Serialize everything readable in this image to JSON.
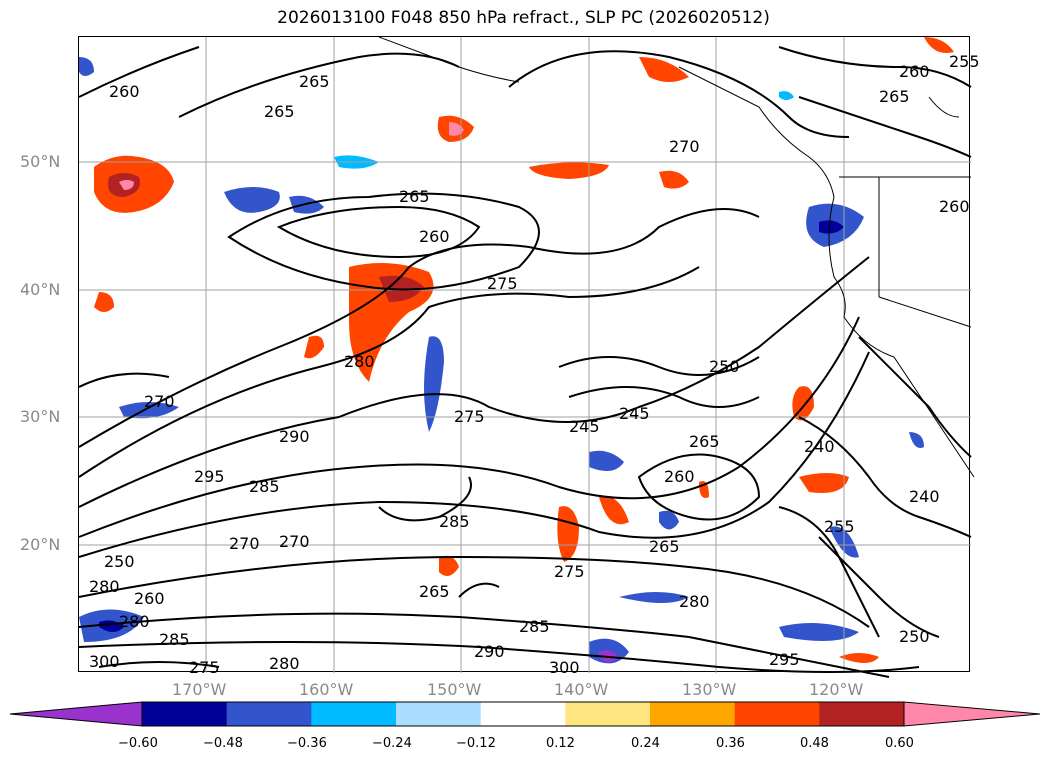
{
  "title": "2026013100 F048 850 hPa refract., SLP PC (2026020512)",
  "map": {
    "lat_labels": [
      "50°N",
      "40°N",
      "30°N",
      "20°N"
    ],
    "lon_labels": [
      "170°W",
      "160°W",
      "150°W",
      "140°W",
      "130°W",
      "120°W"
    ],
    "contour_labels": [
      "260",
      "265",
      "265",
      "260",
      "255",
      "260",
      "265",
      "270",
      "265",
      "260",
      "275",
      "280",
      "270",
      "250",
      "245",
      "245",
      "275",
      "290",
      "295",
      "285",
      "270",
      "285",
      "265",
      "265",
      "275",
      "280",
      "285",
      "290",
      "300",
      "295",
      "250",
      "255",
      "240",
      "240",
      "260",
      "265",
      "250",
      "280",
      "285",
      "270",
      "275",
      "260",
      "280",
      "280",
      "300"
    ],
    "colors": {
      "contour": "#000000",
      "coast": "#000000"
    }
  },
  "colorbar": {
    "ticks": [
      "−0.60",
      "−0.48",
      "−0.36",
      "−0.24",
      "−0.12",
      "0.12",
      "0.24",
      "0.36",
      "0.48",
      "0.60"
    ],
    "colors": [
      "#9933cc",
      "#000099",
      "#3355cc",
      "#00bbff",
      "#aaddff",
      "#ffffff",
      "#ffe680",
      "#ffa500",
      "#ff4500",
      "#b22222",
      "#ff88aa"
    ]
  }
}
